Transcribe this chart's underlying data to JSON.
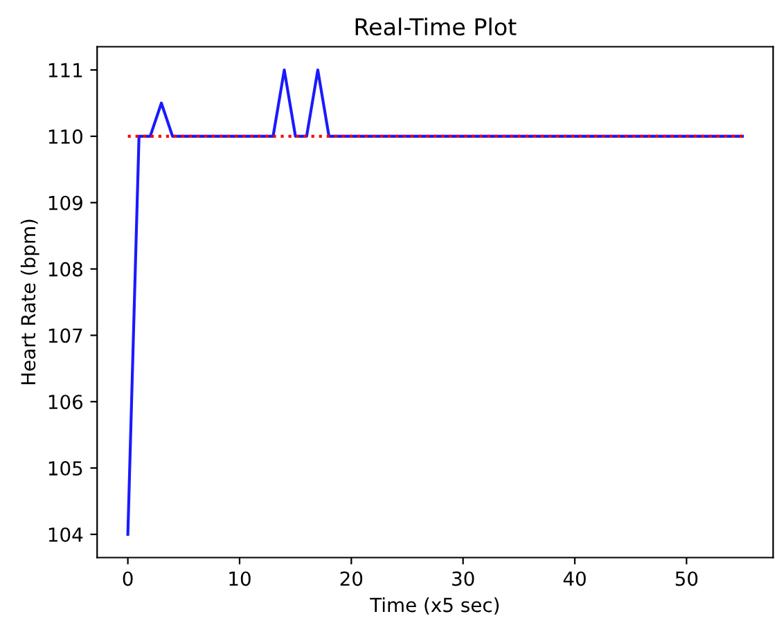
{
  "chart_data": {
    "type": "line",
    "title": "Real-Time Plot",
    "xlabel": "Time (x5 sec)",
    "ylabel": "Heart Rate (bpm)",
    "series": [
      {
        "color": "#1a1aff",
        "line_style": "solid",
        "x": [
          0,
          1,
          2,
          3,
          4,
          5,
          6,
          7,
          8,
          9,
          10,
          11,
          12,
          13,
          14,
          15,
          16,
          17,
          18,
          19,
          20,
          21,
          22,
          23,
          24,
          25,
          26,
          27,
          28,
          29,
          30,
          31,
          32,
          33,
          34,
          35,
          36,
          37,
          38,
          39,
          40,
          41,
          42,
          43,
          44,
          45,
          46,
          47,
          48,
          49,
          50,
          51,
          52,
          53,
          54,
          55
        ],
        "values": [
          104,
          110,
          110,
          110.5,
          110,
          110,
          110,
          110,
          110,
          110,
          110,
          110,
          110,
          110,
          111,
          110,
          110,
          111,
          110,
          110,
          110,
          110,
          110,
          110,
          110,
          110,
          110,
          110,
          110,
          110,
          110,
          110,
          110,
          110,
          110,
          110,
          110,
          110,
          110,
          110,
          110,
          110,
          110,
          110,
          110,
          110,
          110,
          110,
          110,
          110,
          110,
          110,
          110,
          110,
          110,
          110
        ]
      },
      {
        "color": "#ff0000",
        "line_style": "dotted",
        "x": [
          0,
          55
        ],
        "values": [
          110,
          110
        ]
      }
    ],
    "xlim": [
      -2.75,
      57.75
    ],
    "xticks": [
      0,
      10,
      20,
      30,
      40,
      50
    ],
    "ylim": [
      103.65,
      111.35
    ],
    "yticks": [
      104,
      105,
      106,
      107,
      108,
      109,
      110,
      111
    ],
    "grid": false,
    "legend": false
  }
}
